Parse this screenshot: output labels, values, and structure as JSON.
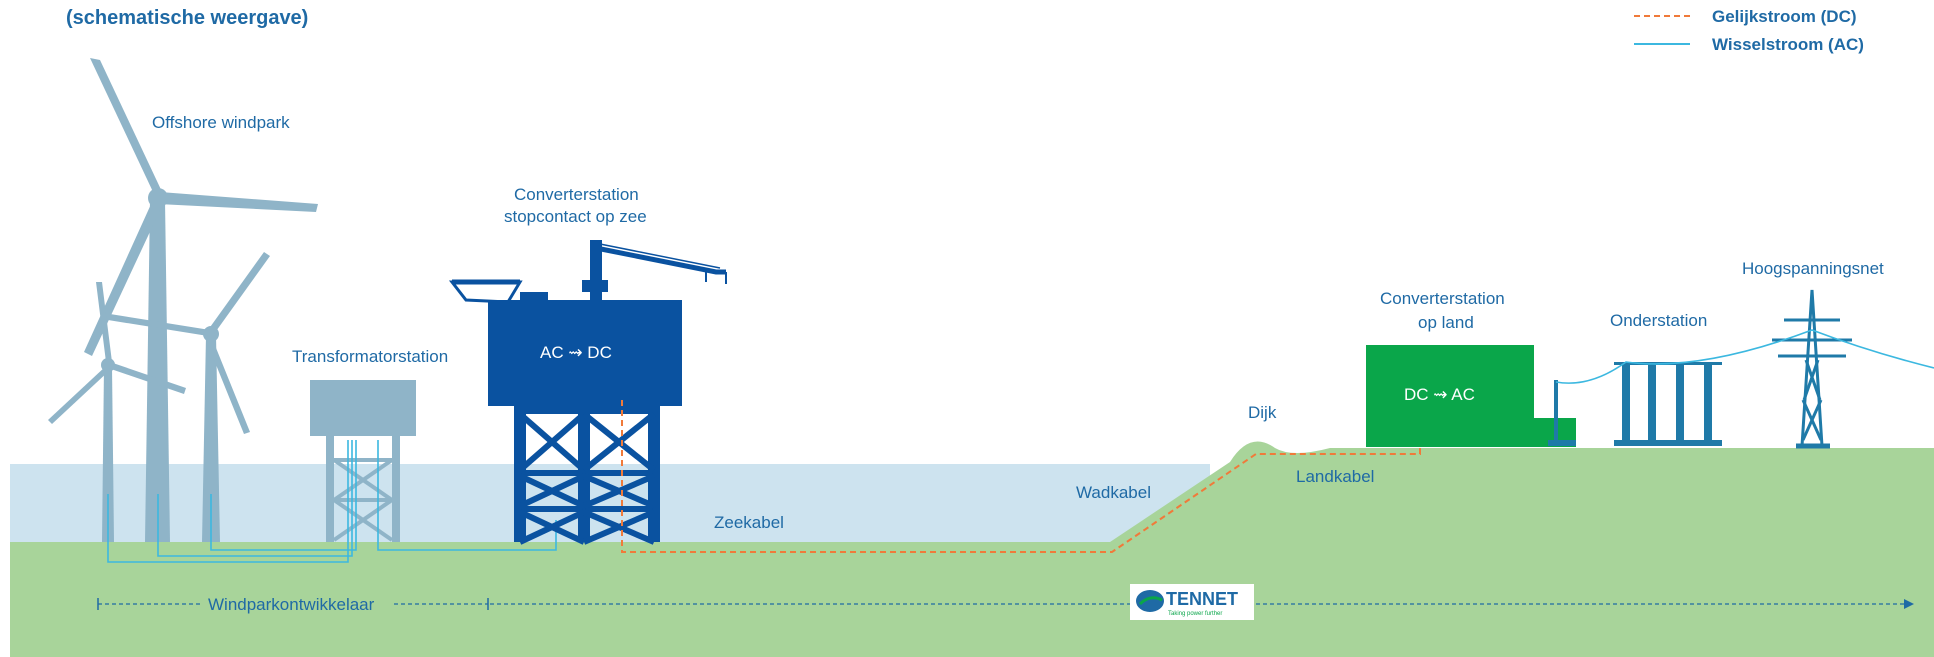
{
  "title": "(schematische weergave)",
  "legend": {
    "dc_label": "Gelijkstroom (DC)",
    "ac_label": "Wisselstroom (AC)",
    "dc_color": "#f07a3a",
    "ac_color": "#3cb8e0"
  },
  "labels": {
    "windpark": "Offshore windpark",
    "transformator": "Transformatorstation",
    "converter_sea_line1": "Converterstation",
    "converter_sea_line2": "stopcontact op zee",
    "converter_sea_text": "AC ⇝ DC",
    "zeekabel": "Zeekabel",
    "wadkabel": "Wadkabel",
    "dijk": "Dijk",
    "landkabel": "Landkabel",
    "converter_land_line1": "Converterstation",
    "converter_land_line2": "op land",
    "converter_land_text": "DC ⇝ AC",
    "onderstation": "Onderstation",
    "hoogspanningsnet": "Hoogspanningsnet",
    "windparkontwikkelaar": "Windparkontwikkelaar"
  },
  "logo": {
    "brand": "TENNET",
    "tagline": "Taking power further"
  },
  "colors": {
    "sea": "#cde3ef",
    "land": "#a8d49a",
    "platform": "#0a52a0",
    "converter_land": "#0aa64a",
    "transformer": "#8fb4c8",
    "turbine": "#8fb4c8",
    "label": "#1f6aa5"
  }
}
